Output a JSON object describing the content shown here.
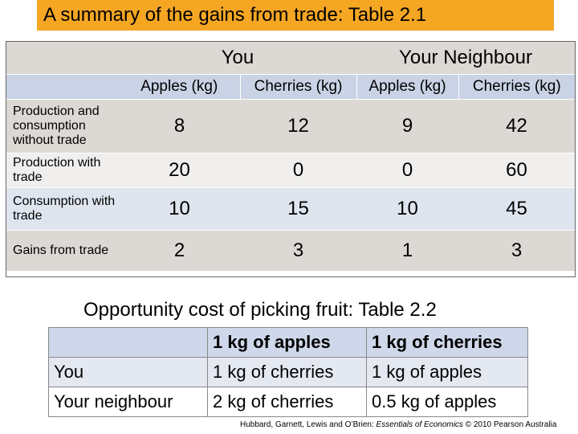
{
  "title": "A summary of the gains from trade: Table 2.1",
  "table_2_1": {
    "groups": [
      "You",
      "Your Neighbour"
    ],
    "columns": [
      "Apples (kg)",
      "Cherries (kg)",
      "Apples (kg)",
      "Cherries (kg)"
    ],
    "rows": [
      {
        "label": "Production and consumption without trade",
        "values": [
          "8",
          "12",
          "9",
          "42"
        ]
      },
      {
        "label": "Production with trade",
        "values": [
          "20",
          "0",
          "0",
          "60"
        ]
      },
      {
        "label": "Consumption with trade",
        "values": [
          "10",
          "15",
          "10",
          "45"
        ]
      },
      {
        "label": "Gains from trade",
        "values": [
          "2",
          "3",
          "1",
          "3"
        ]
      }
    ]
  },
  "subtitle": "Opportunity cost of picking fruit: Table 2.2",
  "table_2_2": {
    "columns": [
      "",
      "1 kg of apples",
      "1 kg of cherries"
    ],
    "rows": [
      {
        "label": "You",
        "values": [
          "1 kg of cherries",
          "1 kg of apples"
        ]
      },
      {
        "label": "Your neighbour",
        "values": [
          "2 kg of cherries",
          "0.5 kg of apples"
        ]
      }
    ]
  },
  "footnote": {
    "authors": "Hubbard, Garnett, Lewis and O’Brien:",
    "book": "Essentials of Economics",
    "rest": "© 2010 Pearson Australia"
  },
  "colors": {
    "title_bar": "#f5a623",
    "row_grey": "#dcd9d5",
    "row_blue": "#c9d3e5",
    "row_light": "#f0efee",
    "row_light_blue": "#dfe5ef",
    "t2_header": "#cfd8ea",
    "t2_row": "#e4e8f1"
  }
}
